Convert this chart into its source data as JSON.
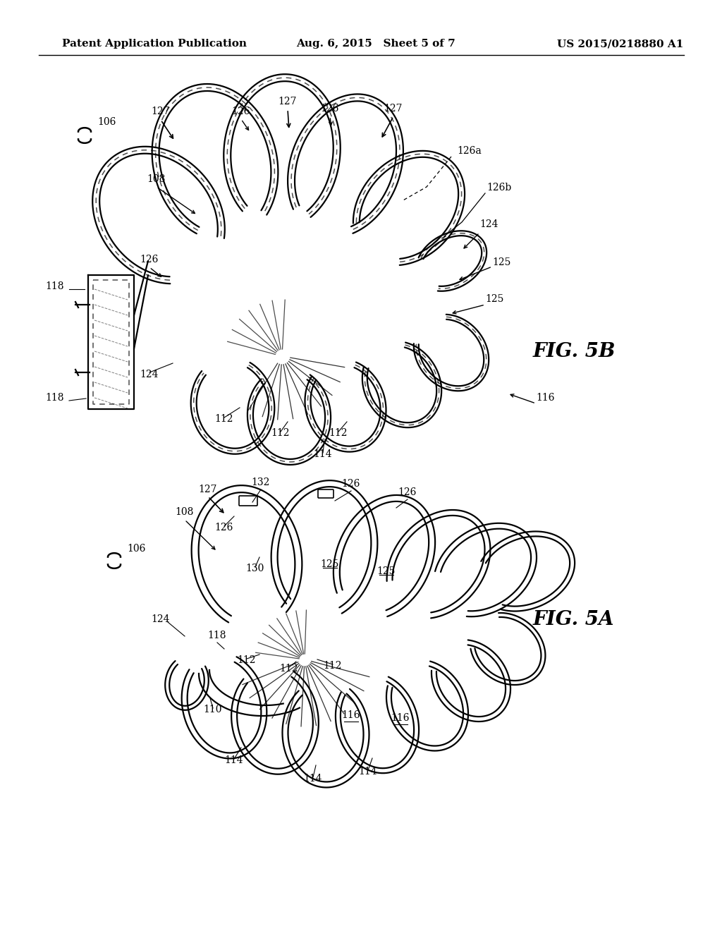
{
  "background_color": "#ffffff",
  "header_left": "Patent Application Publication",
  "header_center": "Aug. 6, 2015   Sheet 5 of 7",
  "header_right": "US 2015/0218880 A1",
  "header_fontsize": 11,
  "fig_label_5B": "FIG. 5B",
  "fig_label_5A": "FIG. 5A",
  "fig_label_fontsize": 20,
  "line_color": "#000000",
  "annotation_fontsize": 10,
  "lw_outer": 1.6,
  "lw_inner": 1.1
}
